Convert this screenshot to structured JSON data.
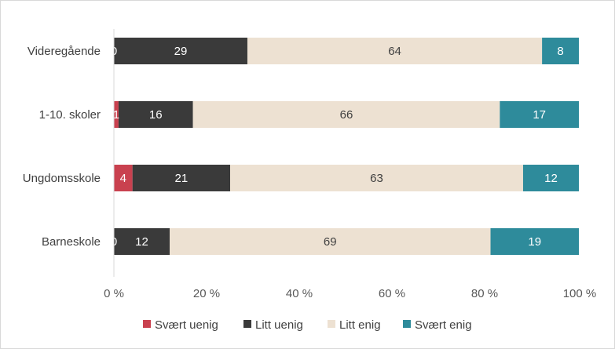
{
  "chart_data": {
    "type": "bar",
    "orientation": "horizontal",
    "stacked": "percent",
    "categories": [
      "Videregående",
      "1-10. skoler",
      "Ungdomsskole",
      "Barneskole"
    ],
    "series": [
      {
        "name": "Svært uenig",
        "color": "#c9414f",
        "label_color": "#ffffff",
        "values": [
          0,
          1,
          4,
          0
        ],
        "labels": [
          "0",
          "1",
          "4",
          "0"
        ]
      },
      {
        "name": "Litt uenig",
        "color": "#3a3a3a",
        "label_color": "#ffffff",
        "values": [
          29,
          16,
          21,
          12
        ],
        "labels": [
          "29",
          "16",
          "21",
          "12"
        ]
      },
      {
        "name": "Litt enig",
        "color": "#ede1d2",
        "label_color": "#404040",
        "values": [
          64,
          66,
          63,
          69
        ],
        "labels": [
          "64",
          "66",
          "63",
          "69"
        ]
      },
      {
        "name": "Svært enig",
        "color": "#2e8b9b",
        "label_color": "#ffffff",
        "values": [
          8,
          17,
          12,
          19
        ],
        "labels": [
          "8",
          "17",
          "12",
          "19"
        ]
      }
    ],
    "xlim": [
      0,
      100
    ],
    "xticks": [
      "0 %",
      "20 %",
      "40 %",
      "60 %",
      "80 %",
      "100 %"
    ],
    "grid": false,
    "legend_position": "bottom",
    "title": "",
    "xlabel": "",
    "ylabel": ""
  }
}
